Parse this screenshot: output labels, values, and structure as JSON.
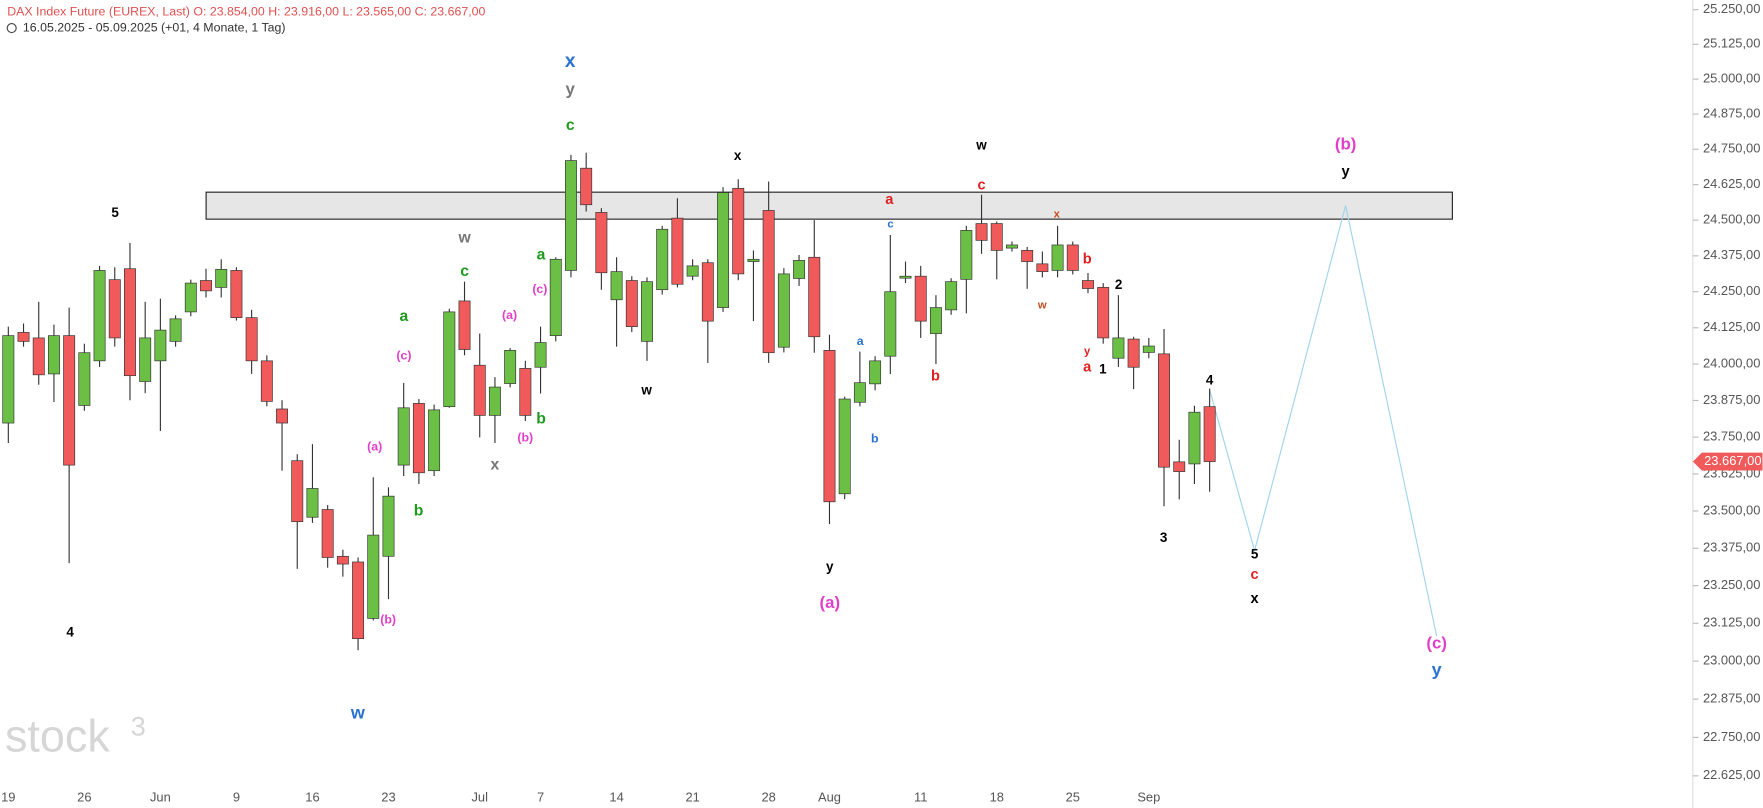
{
  "header": {
    "line1": "DAX Index Future (EUREX, Last)  O: 23.854,00  H: 23.916,00  L: 23.565,00  C: 23.667,00",
    "line2": "16.05.2025 - 05.09.2025   (+01, 4 Monate, 1 Tag)"
  },
  "watermark": {
    "main": "stock",
    "sup": "3"
  },
  "chart_data": {
    "type": "candlestick",
    "log_scale": true,
    "grid": false,
    "up_color": "#6cbf45",
    "down_color": "#f05a5a",
    "categories": [
      "19",
      null,
      null,
      null,
      null,
      "26",
      null,
      null,
      null,
      null,
      "Jun",
      null,
      null,
      null,
      null,
      "9",
      null,
      null,
      null,
      null,
      "16",
      null,
      null,
      null,
      null,
      "23",
      null,
      null,
      null,
      null,
      null,
      "Jul",
      null,
      null,
      null,
      "7",
      null,
      null,
      null,
      null,
      "14",
      null,
      null,
      null,
      null,
      "21",
      null,
      null,
      null,
      null,
      "28",
      null,
      null,
      null,
      "Aug",
      null,
      null,
      null,
      null,
      null,
      "11",
      null,
      null,
      null,
      null,
      "18",
      null,
      null,
      null,
      null,
      "25",
      null,
      null,
      null,
      null,
      "Sep",
      null,
      null,
      null,
      null
    ],
    "open": [
      23798,
      24109,
      24090,
      23966,
      24098,
      23858,
      24011,
      24292,
      24330,
      23940,
      24011,
      24078,
      24180,
      24289,
      24265,
      24324,
      24160,
      24011,
      23846,
      23670,
      23479,
      23505,
      23348,
      23329,
      23141,
      23348,
      23655,
      23865,
      23636,
      23854,
      24218,
      23996,
      23824,
      23933,
      23985,
      23989,
      24098,
      24324,
      24683,
      24527,
      24222,
      24289,
      24078,
      24257,
      24507,
      24304,
      24351,
      24195,
      24612,
      24355,
      24534,
      24058,
      24296,
      24370,
      24047,
      23558,
      23869,
      23932,
      24027,
      24297,
      24304,
      24105,
      24187,
      24293,
      24488,
      24488,
      24402,
      24394,
      24347,
      24324,
      24413,
      24289,
      24265,
      24020,
      24086,
      24040,
      24035,
      23666,
      23659,
      23854
    ],
    "high": [
      24129,
      24140,
      24215,
      24136,
      24195,
      24070,
      24340,
      24335,
      24420,
      24215,
      24226,
      24168,
      24292,
      24330,
      24363,
      24335,
      24187,
      24030,
      23876,
      23692,
      23726,
      23520,
      23370,
      23344,
      23614,
      23580,
      23935,
      23880,
      23861,
      24191,
      24285,
      24105,
      23955,
      24055,
      24011,
      24129,
      24370,
      24730,
      24738,
      24542,
      24370,
      24304,
      24300,
      24480,
      24577,
      24363,
      24363,
      24616,
      24644,
      24394,
      24636,
      24332,
      24378,
      24500,
      24101,
      23888,
      24043,
      24027,
      24448,
      24355,
      24340,
      24238,
      24297,
      24480,
      24589,
      24495,
      24425,
      24406,
      24390,
      24480,
      24425,
      24315,
      24280,
      24238,
      24094,
      24090,
      24121,
      23741,
      23857,
      23916
    ],
    "low": [
      23730,
      24060,
      23929,
      23870,
      23325,
      23840,
      23990,
      24060,
      23876,
      23900,
      23771,
      24060,
      24165,
      24230,
      24230,
      24150,
      23966,
      23855,
      23636,
      23306,
      23460,
      23310,
      23280,
      23036,
      23134,
      23205,
      23618,
      23591,
      23618,
      23850,
      24030,
      23749,
      23730,
      23920,
      23805,
      23899,
      24078,
      24300,
      24530,
      24257,
      24060,
      24110,
      24011,
      24240,
      24265,
      24290,
      24004,
      24180,
      24290,
      24148,
      24004,
      24040,
      24270,
      24039,
      23456,
      23540,
      23855,
      23910,
      23966,
      24280,
      24090,
      24000,
      24170,
      24175,
      24382,
      24293,
      24390,
      24260,
      24300,
      24300,
      24310,
      24245,
      24070,
      23990,
      23914,
      24020,
      23516,
      23539,
      23591,
      23565
    ],
    "close": [
      24098,
      24078,
      23963,
      24098,
      23655,
      24039,
      24324,
      24090,
      23960,
      24090,
      24117,
      24156,
      24280,
      24253,
      24328,
      24160,
      24011,
      23872,
      23798,
      23464,
      23576,
      23344,
      23322,
      23074,
      23419,
      23550,
      23850,
      23629,
      23843,
      24180,
      24050,
      23824,
      23921,
      24047,
      23824,
      24074,
      24363,
      24710,
      24554,
      24316,
      24320,
      24129,
      24285,
      24468,
      24276,
      24340,
      24148,
      24597,
      24312,
      24363,
      24039,
      24312,
      24359,
      24094,
      23531,
      23880,
      23936,
      24011,
      24250,
      24304,
      24148,
      24195,
      24285,
      24464,
      24429,
      24394,
      24413,
      24355,
      24320,
      24413,
      24324,
      24261,
      24090,
      24090,
      23989,
      24062,
      23648,
      23633,
      23835,
      23667
    ],
    "ylim": [
      22590,
      25285
    ],
    "yticks": [
      {
        "value": 25250,
        "label": "25.250,00"
      },
      {
        "value": 25125,
        "label": "25.125,00"
      },
      {
        "value": 25000,
        "label": "25.000,00"
      },
      {
        "value": 24875,
        "label": "24.875,00"
      },
      {
        "value": 24750,
        "label": "24.750,00"
      },
      {
        "value": 24625,
        "label": "24.625,00"
      },
      {
        "value": 24500,
        "label": "24.500,00"
      },
      {
        "value": 24375,
        "label": "24.375,00"
      },
      {
        "value": 24250,
        "label": "24.250,00"
      },
      {
        "value": 24125,
        "label": "24.125,00"
      },
      {
        "value": 24000,
        "label": "24.000,00"
      },
      {
        "value": 23875,
        "label": "23.875,00"
      },
      {
        "value": 23750,
        "label": "23.750,00"
      },
      {
        "value": 23625,
        "label": "23.625,00"
      },
      {
        "value": 23500,
        "label": "23.500,00"
      },
      {
        "value": 23375,
        "label": "23.375,00"
      },
      {
        "value": 23250,
        "label": "23.250,00"
      },
      {
        "value": 23125,
        "label": "23.125,00"
      },
      {
        "value": 23000,
        "label": "23.000,00"
      },
      {
        "value": 22875,
        "label": "22.875,00"
      },
      {
        "value": 22750,
        "label": "22.750,00"
      },
      {
        "value": 22625,
        "label": "22.625,00"
      }
    ],
    "last_price": {
      "value": 23667,
      "label": "23.667,00",
      "color": "#f05a5a"
    },
    "annotations": [
      {
        "text": "5",
        "color": "#000000"
      },
      {
        "text": "4",
        "color": "#000000"
      },
      {
        "text": "w",
        "color": "#2a72d0"
      },
      {
        "text": "(a)",
        "color": "#e040c8"
      },
      {
        "text": "(b)",
        "color": "#e040c8"
      },
      {
        "text": "a",
        "color": "#1e9a1e"
      },
      {
        "text": "(c)",
        "color": "#e040c8"
      },
      {
        "text": "b",
        "color": "#1e9a1e"
      },
      {
        "text": "w",
        "color": "#777777"
      },
      {
        "text": "c",
        "color": "#1e9a1e"
      },
      {
        "text": "x",
        "color": "#777777"
      },
      {
        "text": "(a)",
        "color": "#e040c8"
      },
      {
        "text": "(b)",
        "color": "#e040c8"
      },
      {
        "text": "(c)",
        "color": "#e040c8"
      },
      {
        "text": "a",
        "color": "#1e9a1e"
      },
      {
        "text": "b",
        "color": "#1e9a1e"
      },
      {
        "text": "x",
        "color": "#2a72d0"
      },
      {
        "text": "y",
        "color": "#777777"
      },
      {
        "text": "c",
        "color": "#1e9a1e"
      },
      {
        "text": "w",
        "color": "#000000"
      },
      {
        "text": "x",
        "color": "#000000"
      },
      {
        "text": "y",
        "color": "#000000"
      },
      {
        "text": "(a)",
        "color": "#e040c8"
      },
      {
        "text": "a",
        "color": "#e02020"
      },
      {
        "text": "c",
        "color": "#2a72d0"
      },
      {
        "text": "a",
        "color": "#2a72d0"
      },
      {
        "text": "b",
        "color": "#2a72d0"
      },
      {
        "text": "b",
        "color": "#e02020"
      },
      {
        "text": "w",
        "color": "#000000"
      },
      {
        "text": "c",
        "color": "#e02020"
      },
      {
        "text": "x",
        "color": "#c05020"
      },
      {
        "text": "w",
        "color": "#c05020"
      },
      {
        "text": "b",
        "color": "#e02020"
      },
      {
        "text": "y",
        "color": "#e02020"
      },
      {
        "text": "a",
        "color": "#e02020"
      },
      {
        "text": "2",
        "color": "#000000"
      },
      {
        "text": "1",
        "color": "#000000"
      },
      {
        "text": "3",
        "color": "#000000"
      },
      {
        "text": "4",
        "color": "#000000"
      },
      {
        "text": "5",
        "color": "#000000"
      },
      {
        "text": "c",
        "color": "#e02020"
      },
      {
        "text": "x",
        "color": "#000000"
      },
      {
        "text": "(b)",
        "color": "#e040c8"
      },
      {
        "text": "y",
        "color": "#000000"
      },
      {
        "text": "(c)",
        "color": "#e040c8"
      },
      {
        "text": "y",
        "color": "#2a72d0"
      }
    ]
  }
}
